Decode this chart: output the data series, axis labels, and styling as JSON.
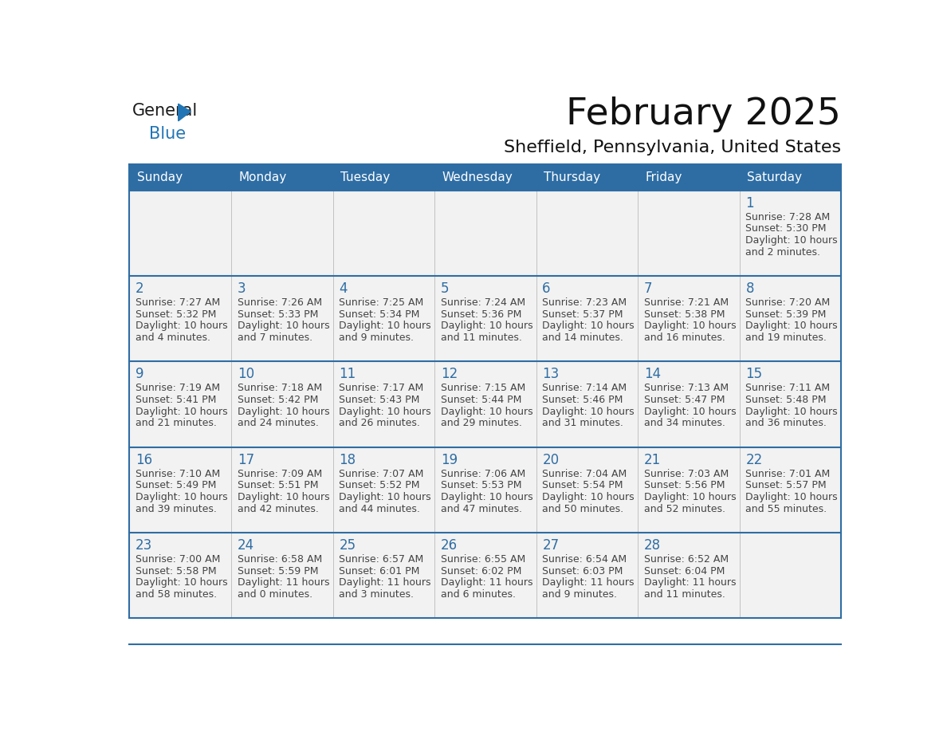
{
  "title": "February 2025",
  "subtitle": "Sheffield, Pennsylvania, United States",
  "days_of_week": [
    "Sunday",
    "Monday",
    "Tuesday",
    "Wednesday",
    "Thursday",
    "Friday",
    "Saturday"
  ],
  "header_bg": "#2E6DA4",
  "header_text": "#FFFFFF",
  "cell_bg_light": "#F2F2F2",
  "day_num_color": "#2E6DA4",
  "text_color": "#444444",
  "border_color": "#2E6DA4",
  "calendar": [
    [
      null,
      null,
      null,
      null,
      null,
      null,
      {
        "day": "1",
        "sunrise": "7:28 AM",
        "sunset": "5:30 PM",
        "daylight_h": "10 hours",
        "daylight_m": "and 2 minutes."
      }
    ],
    [
      {
        "day": "2",
        "sunrise": "7:27 AM",
        "sunset": "5:32 PM",
        "daylight_h": "10 hours",
        "daylight_m": "and 4 minutes."
      },
      {
        "day": "3",
        "sunrise": "7:26 AM",
        "sunset": "5:33 PM",
        "daylight_h": "10 hours",
        "daylight_m": "and 7 minutes."
      },
      {
        "day": "4",
        "sunrise": "7:25 AM",
        "sunset": "5:34 PM",
        "daylight_h": "10 hours",
        "daylight_m": "and 9 minutes."
      },
      {
        "day": "5",
        "sunrise": "7:24 AM",
        "sunset": "5:36 PM",
        "daylight_h": "10 hours",
        "daylight_m": "and 11 minutes."
      },
      {
        "day": "6",
        "sunrise": "7:23 AM",
        "sunset": "5:37 PM",
        "daylight_h": "10 hours",
        "daylight_m": "and 14 minutes."
      },
      {
        "day": "7",
        "sunrise": "7:21 AM",
        "sunset": "5:38 PM",
        "daylight_h": "10 hours",
        "daylight_m": "and 16 minutes."
      },
      {
        "day": "8",
        "sunrise": "7:20 AM",
        "sunset": "5:39 PM",
        "daylight_h": "10 hours",
        "daylight_m": "and 19 minutes."
      }
    ],
    [
      {
        "day": "9",
        "sunrise": "7:19 AM",
        "sunset": "5:41 PM",
        "daylight_h": "10 hours",
        "daylight_m": "and 21 minutes."
      },
      {
        "day": "10",
        "sunrise": "7:18 AM",
        "sunset": "5:42 PM",
        "daylight_h": "10 hours",
        "daylight_m": "and 24 minutes."
      },
      {
        "day": "11",
        "sunrise": "7:17 AM",
        "sunset": "5:43 PM",
        "daylight_h": "10 hours",
        "daylight_m": "and 26 minutes."
      },
      {
        "day": "12",
        "sunrise": "7:15 AM",
        "sunset": "5:44 PM",
        "daylight_h": "10 hours",
        "daylight_m": "and 29 minutes."
      },
      {
        "day": "13",
        "sunrise": "7:14 AM",
        "sunset": "5:46 PM",
        "daylight_h": "10 hours",
        "daylight_m": "and 31 minutes."
      },
      {
        "day": "14",
        "sunrise": "7:13 AM",
        "sunset": "5:47 PM",
        "daylight_h": "10 hours",
        "daylight_m": "and 34 minutes."
      },
      {
        "day": "15",
        "sunrise": "7:11 AM",
        "sunset": "5:48 PM",
        "daylight_h": "10 hours",
        "daylight_m": "and 36 minutes."
      }
    ],
    [
      {
        "day": "16",
        "sunrise": "7:10 AM",
        "sunset": "5:49 PM",
        "daylight_h": "10 hours",
        "daylight_m": "and 39 minutes."
      },
      {
        "day": "17",
        "sunrise": "7:09 AM",
        "sunset": "5:51 PM",
        "daylight_h": "10 hours",
        "daylight_m": "and 42 minutes."
      },
      {
        "day": "18",
        "sunrise": "7:07 AM",
        "sunset": "5:52 PM",
        "daylight_h": "10 hours",
        "daylight_m": "and 44 minutes."
      },
      {
        "day": "19",
        "sunrise": "7:06 AM",
        "sunset": "5:53 PM",
        "daylight_h": "10 hours",
        "daylight_m": "and 47 minutes."
      },
      {
        "day": "20",
        "sunrise": "7:04 AM",
        "sunset": "5:54 PM",
        "daylight_h": "10 hours",
        "daylight_m": "and 50 minutes."
      },
      {
        "day": "21",
        "sunrise": "7:03 AM",
        "sunset": "5:56 PM",
        "daylight_h": "10 hours",
        "daylight_m": "and 52 minutes."
      },
      {
        "day": "22",
        "sunrise": "7:01 AM",
        "sunset": "5:57 PM",
        "daylight_h": "10 hours",
        "daylight_m": "and 55 minutes."
      }
    ],
    [
      {
        "day": "23",
        "sunrise": "7:00 AM",
        "sunset": "5:58 PM",
        "daylight_h": "10 hours",
        "daylight_m": "and 58 minutes."
      },
      {
        "day": "24",
        "sunrise": "6:58 AM",
        "sunset": "5:59 PM",
        "daylight_h": "11 hours",
        "daylight_m": "and 0 minutes."
      },
      {
        "day": "25",
        "sunrise": "6:57 AM",
        "sunset": "6:01 PM",
        "daylight_h": "11 hours",
        "daylight_m": "and 3 minutes."
      },
      {
        "day": "26",
        "sunrise": "6:55 AM",
        "sunset": "6:02 PM",
        "daylight_h": "11 hours",
        "daylight_m": "and 6 minutes."
      },
      {
        "day": "27",
        "sunrise": "6:54 AM",
        "sunset": "6:03 PM",
        "daylight_h": "11 hours",
        "daylight_m": "and 9 minutes."
      },
      {
        "day": "28",
        "sunrise": "6:52 AM",
        "sunset": "6:04 PM",
        "daylight_h": "11 hours",
        "daylight_m": "and 11 minutes."
      },
      null
    ]
  ]
}
